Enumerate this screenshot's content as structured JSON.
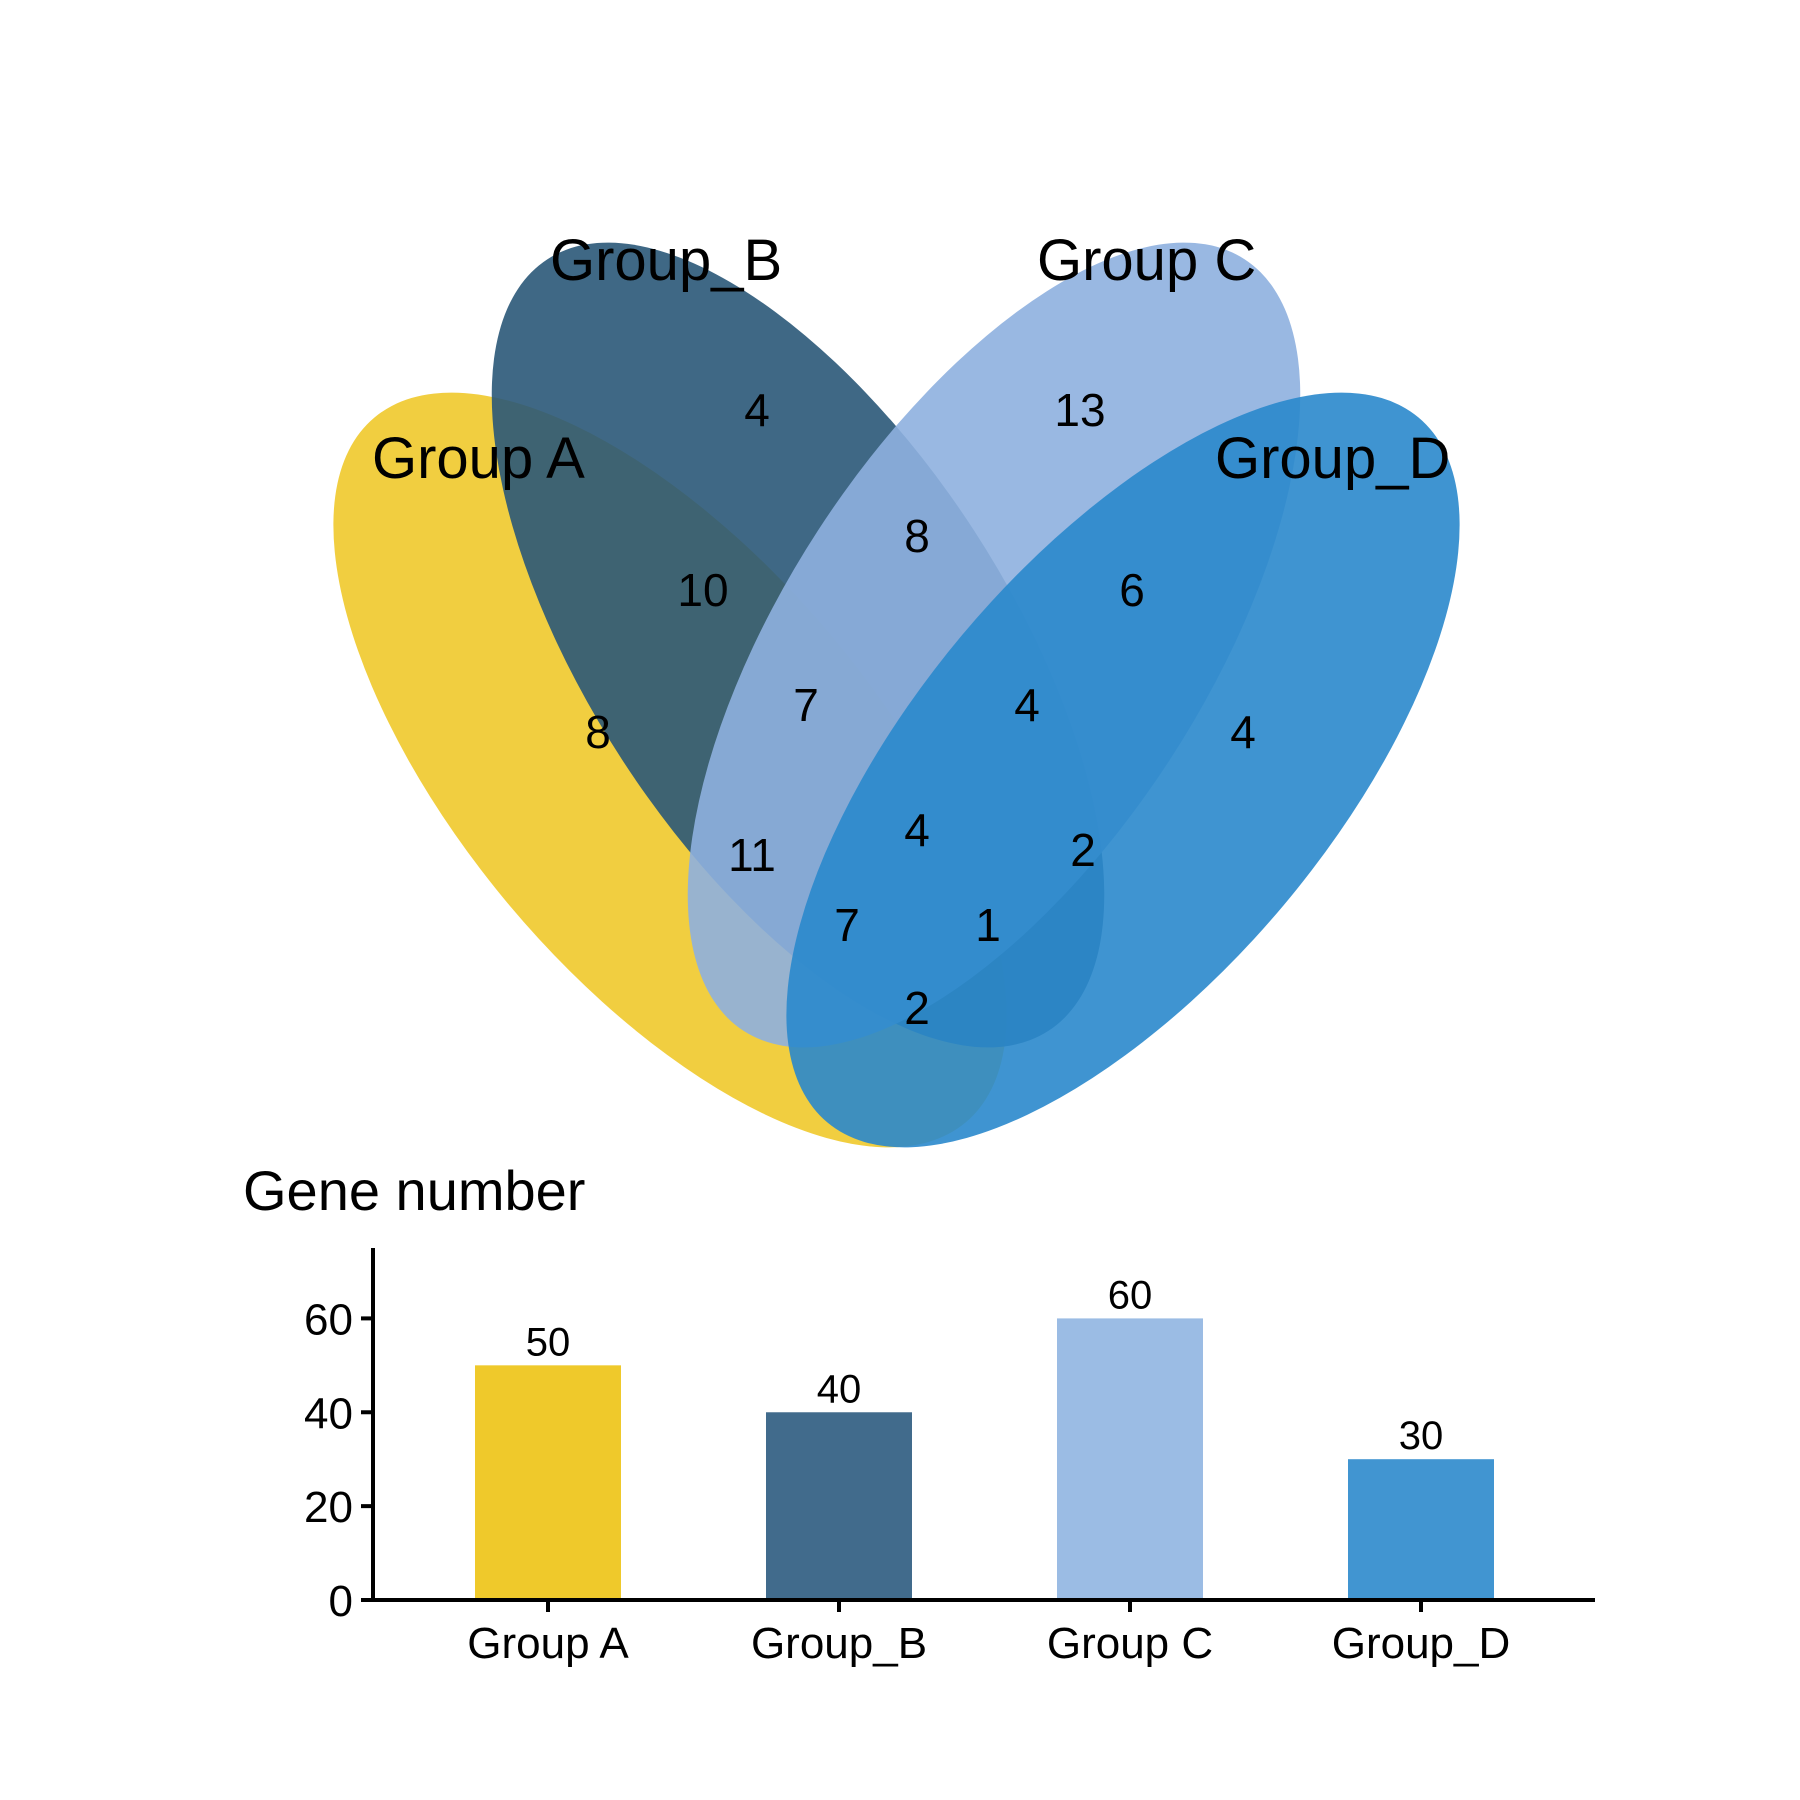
{
  "chart_data": [
    {
      "type": "venn",
      "sets": [
        {
          "name": "Group A",
          "color": "#EFC92B"
        },
        {
          "name": "Group_B",
          "color": "#2A5878"
        },
        {
          "name": "Group C",
          "color": "#8EB0DF"
        },
        {
          "name": "Group_D",
          "color": "#2A88CC"
        }
      ],
      "regions": [
        {
          "sets": [
            "Group A"
          ],
          "value": 8
        },
        {
          "sets": [
            "Group_B"
          ],
          "value": 4
        },
        {
          "sets": [
            "Group C"
          ],
          "value": 13
        },
        {
          "sets": [
            "Group_D"
          ],
          "value": 4
        },
        {
          "sets": [
            "Group A",
            "Group_B"
          ],
          "value": 10
        },
        {
          "sets": [
            "Group_B",
            "Group C"
          ],
          "value": 8
        },
        {
          "sets": [
            "Group C",
            "Group_D"
          ],
          "value": 6
        },
        {
          "sets": [
            "Group A",
            "Group_B",
            "Group C"
          ],
          "value": 7
        },
        {
          "sets": [
            "Group_B",
            "Group C",
            "Group_D"
          ],
          "value": 4
        },
        {
          "sets": [
            "Group A",
            "Group C"
          ],
          "value": 11
        },
        {
          "sets": [
            "Group A",
            "Group_B",
            "Group C",
            "Group_D"
          ],
          "value": 4
        },
        {
          "sets": [
            "Group_B",
            "Group_D"
          ],
          "value": 2
        },
        {
          "sets": [
            "Group A",
            "Group C",
            "Group_D"
          ],
          "value": 7
        },
        {
          "sets": [
            "Group A",
            "Group_B",
            "Group_D"
          ],
          "value": 1
        },
        {
          "sets": [
            "Group A",
            "Group_D"
          ],
          "value": 2
        }
      ]
    },
    {
      "type": "bar",
      "title": "Gene number",
      "categories": [
        "Group A",
        "Group_B",
        "Group C",
        "Group_D"
      ],
      "values": [
        50,
        40,
        60,
        30
      ],
      "colors": [
        "#EFC92B",
        "#416B8C",
        "#9BBCE4",
        "#4195D1"
      ],
      "ylim": [
        0,
        75
      ],
      "yticks": [
        0,
        20,
        40,
        60
      ],
      "xlabel": "",
      "ylabel": "",
      "grid": false,
      "data_labels": true
    }
  ]
}
